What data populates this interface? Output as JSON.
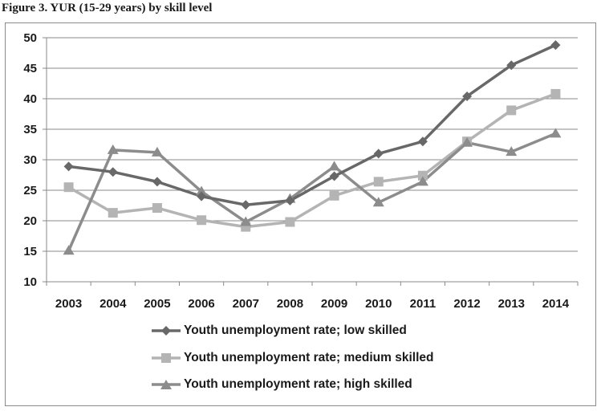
{
  "figure": {
    "caption": "Figure 3. YUR (15-29 years) by skill level"
  },
  "colors": {
    "low": "#686868",
    "medium": "#b4b4b4",
    "high": "#8c8c8c",
    "grid": "#8a8a8a",
    "axis": "#8a8a8a"
  },
  "chart_data": {
    "type": "line",
    "title": "",
    "xlabel": "",
    "ylabel": "",
    "x": [
      "2003",
      "2004",
      "2005",
      "2006",
      "2007",
      "2008",
      "2009",
      "2010",
      "2011",
      "2012",
      "2013",
      "2014"
    ],
    "ylim": [
      10,
      50
    ],
    "yticks": [
      "10",
      "15",
      "20",
      "25",
      "30",
      "35",
      "40",
      "45",
      "50"
    ],
    "grid": true,
    "legend_position": "bottom",
    "series": [
      {
        "name": "Youth unemployment rate; low skilled",
        "marker": "diamond",
        "color_key": "low",
        "values": [
          28.9,
          28.0,
          26.4,
          24.0,
          22.6,
          23.3,
          27.3,
          31.0,
          33.0,
          40.4,
          45.5,
          48.8
        ]
      },
      {
        "name": "Youth unemployment rate; medium skilled",
        "marker": "square",
        "color_key": "medium",
        "values": [
          25.5,
          21.3,
          22.1,
          20.1,
          19.0,
          19.8,
          24.1,
          26.4,
          27.4,
          33.0,
          38.1,
          40.8
        ]
      },
      {
        "name": "Youth unemployment rate; high skilled",
        "marker": "triangle",
        "color_key": "high",
        "values": [
          15.1,
          31.6,
          31.2,
          24.8,
          19.8,
          23.6,
          28.9,
          23.0,
          26.4,
          32.8,
          31.3,
          34.3
        ]
      }
    ]
  }
}
